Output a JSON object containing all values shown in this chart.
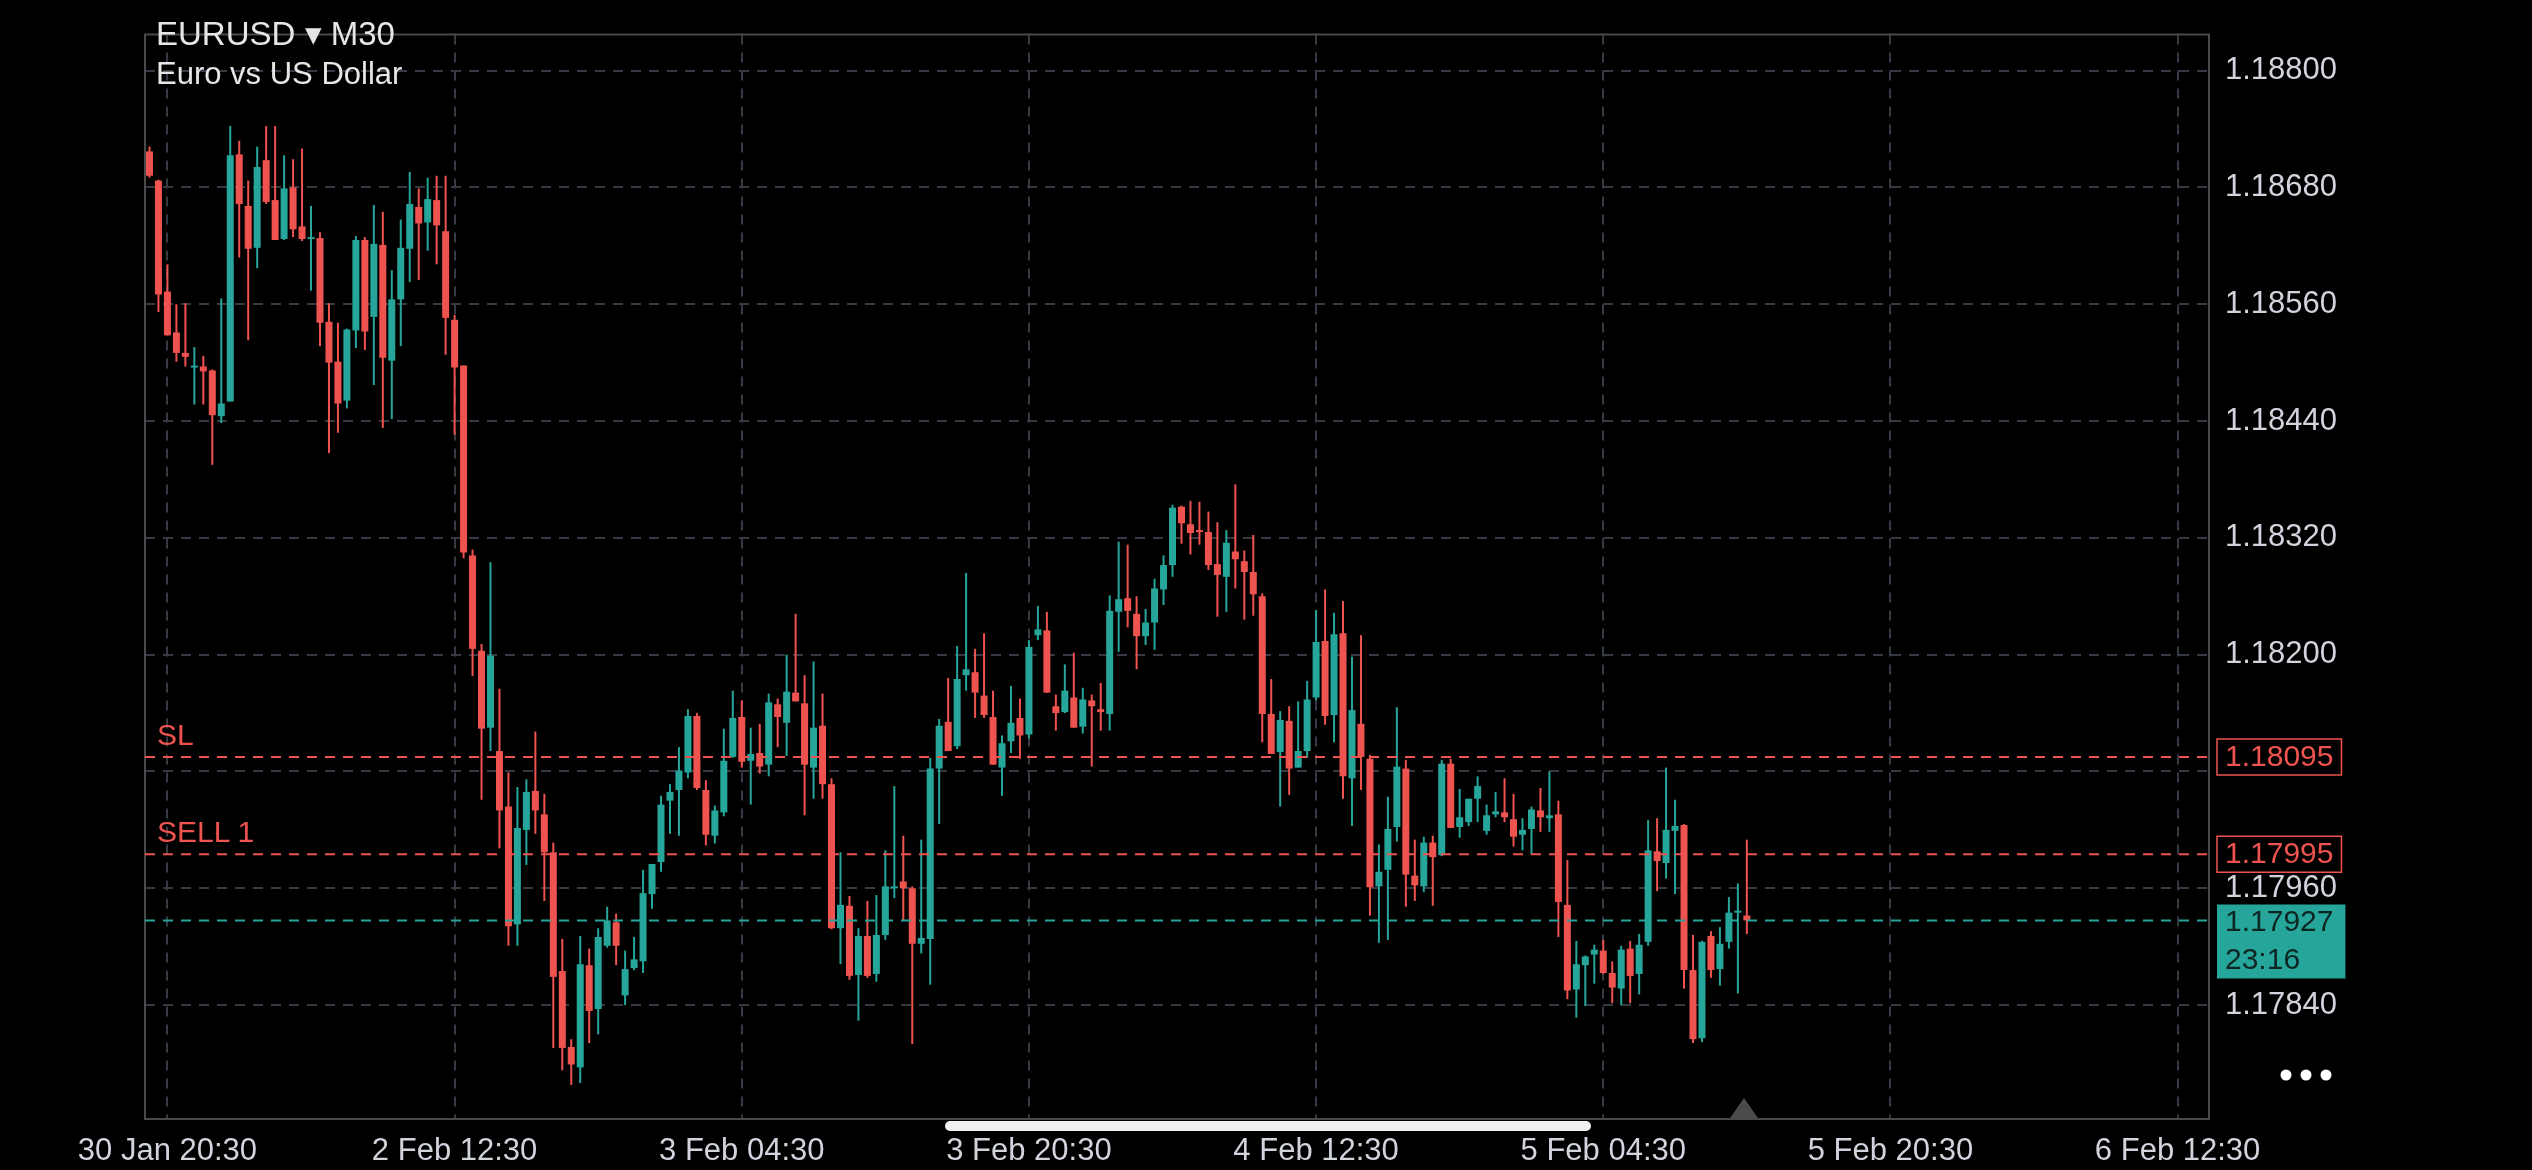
{
  "chart_data": {
    "type": "candlestick",
    "title": "EURUSD ▾ M30",
    "subtitle": "Euro vs US Dollar",
    "categories": [
      null,
      null,
      "30 Jan 20:30",
      null,
      null,
      null,
      null,
      null,
      null,
      null,
      null,
      null,
      null,
      null,
      null,
      null,
      null,
      null,
      null,
      null,
      null,
      null,
      null,
      null,
      null,
      null,
      null,
      null,
      null,
      null,
      null,
      null,
      null,
      null,
      "2 Feb 12:30",
      null,
      null,
      null,
      null,
      null,
      null,
      null,
      null,
      null,
      null,
      null,
      null,
      null,
      null,
      null,
      null,
      null,
      null,
      null,
      null,
      null,
      null,
      null,
      null,
      null,
      null,
      null,
      null,
      null,
      null,
      null,
      "3 Feb 04:30",
      null,
      null,
      null,
      null,
      null,
      null,
      null,
      null,
      null,
      null,
      null,
      null,
      null,
      null,
      null,
      null,
      null,
      null,
      null,
      null,
      null,
      null,
      null,
      null,
      null,
      null,
      null,
      null,
      null,
      null,
      null,
      "3 Feb 20:30",
      null,
      null,
      null,
      null,
      null,
      null,
      null,
      null,
      null,
      null,
      null,
      null,
      null,
      null,
      null,
      null,
      null,
      null,
      null,
      null,
      null,
      null,
      null,
      null,
      null,
      null,
      null,
      null,
      null,
      null,
      null,
      "4 Feb 12:30",
      null,
      null,
      null,
      null,
      null,
      null,
      null,
      null,
      null,
      null,
      null,
      null,
      null,
      null,
      null,
      null,
      null,
      null,
      null,
      null,
      null,
      null,
      null,
      null,
      null,
      null,
      null,
      null,
      null,
      null,
      null,
      "5 Feb 04:30",
      null,
      null,
      null,
      null,
      null,
      null,
      null,
      null,
      null,
      null,
      null,
      null,
      null,
      null,
      null,
      null,
      null,
      null,
      null,
      null,
      null,
      null,
      null,
      null,
      null,
      null,
      null,
      null,
      null,
      null,
      null,
      "5 Feb 20:30",
      null,
      null,
      null,
      null,
      null,
      null,
      null,
      null,
      null,
      null,
      null,
      null,
      null,
      null,
      null,
      null,
      null,
      null,
      null,
      null,
      null,
      null,
      null,
      null,
      null,
      null,
      null,
      null,
      null,
      null,
      null,
      "6 Feb 12:30",
      null,
      null,
      null
    ],
    "ohlc": [
      [
        1.18717,
        1.18722,
        1.1869,
        1.18692
      ],
      [
        1.18687,
        1.18688,
        1.18552,
        1.1857
      ],
      [
        1.18573,
        1.18601,
        1.18528,
        1.18528
      ],
      [
        1.18531,
        1.1856,
        1.18501,
        1.1851
      ],
      [
        1.1851,
        1.18561,
        1.18496,
        1.18506
      ],
      [
        1.18496,
        1.18516,
        1.18457,
        1.18497
      ],
      [
        1.18496,
        1.18507,
        1.18457,
        1.18491
      ],
      [
        1.18492,
        1.18493,
        1.18395,
        1.18446
      ],
      [
        1.18445,
        1.18566,
        1.18438,
        1.18458
      ],
      [
        1.1846,
        1.18743,
        1.1846,
        1.18713
      ],
      [
        1.18714,
        1.18728,
        1.18608,
        1.18663
      ],
      [
        1.18661,
        1.18687,
        1.18523,
        1.18617
      ],
      [
        1.18618,
        1.18722,
        1.18597,
        1.18701
      ],
      [
        1.18708,
        1.18743,
        1.18663,
        1.18665
      ],
      [
        1.18667,
        1.18743,
        1.18626,
        1.18626
      ],
      [
        1.18627,
        1.18713,
        1.18626,
        1.18679
      ],
      [
        1.1868,
        1.18709,
        1.18629,
        1.18637
      ],
      [
        1.1864,
        1.1872,
        1.18625,
        1.18627
      ],
      [
        1.18627,
        1.18661,
        1.18574,
        1.18629
      ],
      [
        1.18628,
        1.18634,
        1.18517,
        1.18541
      ],
      [
        1.18542,
        1.18561,
        1.18407,
        1.185
      ],
      [
        1.18501,
        1.18541,
        1.18428,
        1.18458
      ],
      [
        1.18461,
        1.18535,
        1.18453,
        1.18534
      ],
      [
        1.18533,
        1.1863,
        1.18515,
        1.18626
      ],
      [
        1.18626,
        1.18629,
        1.18513,
        1.18532
      ],
      [
        1.18547,
        1.18662,
        1.18477,
        1.18622
      ],
      [
        1.18621,
        1.18655,
        1.18433,
        1.18505
      ],
      [
        1.18502,
        1.18595,
        1.18442,
        1.18565
      ],
      [
        1.18565,
        1.18647,
        1.18517,
        1.18618
      ],
      [
        1.18617,
        1.18696,
        1.18583,
        1.18663
      ],
      [
        1.1866,
        1.18679,
        1.18585,
        1.18643
      ],
      [
        1.18644,
        1.1869,
        1.18615,
        1.18668
      ],
      [
        1.18667,
        1.18692,
        1.18601,
        1.18641
      ],
      [
        1.18635,
        1.18692,
        1.18508,
        1.18546
      ],
      [
        1.18544,
        1.18549,
        1.18426,
        1.18495
      ],
      [
        1.18497,
        1.18497,
        1.18299,
        1.18305
      ],
      [
        1.18302,
        1.18308,
        1.18178,
        1.18206
      ],
      [
        1.18204,
        1.18211,
        1.18051,
        1.18124
      ],
      [
        1.18125,
        1.18295,
        1.18101,
        1.18199
      ],
      [
        1.18101,
        1.18165,
        1.18001,
        1.1804
      ],
      [
        1.18044,
        1.18079,
        1.17901,
        1.17921
      ],
      [
        1.17923,
        1.18064,
        1.17901,
        1.18022
      ],
      [
        1.1802,
        1.18072,
        1.17984,
        1.18059
      ],
      [
        1.1806,
        1.18121,
        1.18016,
        1.1804
      ],
      [
        1.18036,
        1.18057,
        1.17947,
        1.17997
      ],
      [
        1.17997,
        1.18007,
        1.17796,
        1.17869
      ],
      [
        1.17875,
        1.17908,
        1.17773,
        1.17796
      ],
      [
        1.17797,
        1.17805,
        1.17758,
        1.17779
      ],
      [
        1.17776,
        1.17911,
        1.1776,
        1.17882
      ],
      [
        1.17881,
        1.17898,
        1.17801,
        1.17834
      ],
      [
        1.17836,
        1.17919,
        1.1781,
        1.1791
      ],
      [
        1.17901,
        1.17941,
        1.17899,
        1.17927
      ],
      [
        1.17925,
        1.17934,
        1.17881,
        1.17901
      ],
      [
        1.1785,
        1.17896,
        1.1784,
        1.17877
      ],
      [
        1.17878,
        1.1791,
        1.17876,
        1.17887
      ],
      [
        1.17885,
        1.17979,
        1.17873,
        1.17955
      ],
      [
        1.17954,
        1.17985,
        1.17939,
        1.17985
      ],
      [
        1.17987,
        1.18055,
        1.17977,
        1.18046
      ],
      [
        1.1805,
        1.18067,
        1.18016,
        1.18059
      ],
      [
        1.18061,
        1.18105,
        1.18014,
        1.18081
      ],
      [
        1.18079,
        1.18144,
        1.18073,
        1.18137
      ],
      [
        1.18137,
        1.1814,
        1.18061,
        1.18063
      ],
      [
        1.18061,
        1.18071,
        1.18004,
        1.18015
      ],
      [
        1.18014,
        1.18045,
        1.18006,
        1.1804
      ],
      [
        1.18038,
        1.18124,
        1.18034,
        1.18091
      ],
      [
        1.18095,
        1.18163,
        1.18094,
        1.18135
      ],
      [
        1.18136,
        1.18153,
        1.18084,
        1.1809
      ],
      [
        1.18091,
        1.18125,
        1.18046,
        1.18098
      ],
      [
        1.18099,
        1.18129,
        1.18078,
        1.18085
      ],
      [
        1.18087,
        1.1816,
        1.18075,
        1.18151
      ],
      [
        1.18149,
        1.18155,
        1.18105,
        1.18136
      ],
      [
        1.1813,
        1.182,
        1.18096,
        1.18162
      ],
      [
        1.18161,
        1.18242,
        1.18152,
        1.18152
      ],
      [
        1.1815,
        1.18179,
        1.18035,
        1.18087
      ],
      [
        1.18084,
        1.18193,
        1.18052,
        1.18125
      ],
      [
        1.18127,
        1.1816,
        1.18052,
        1.18067
      ],
      [
        1.18067,
        1.18073,
        1.17918,
        1.17919
      ],
      [
        1.17919,
        1.17997,
        1.17882,
        1.17943
      ],
      [
        1.17942,
        1.17952,
        1.17866,
        1.1787
      ],
      [
        1.17871,
        1.17919,
        1.17824,
        1.17911
      ],
      [
        1.17911,
        1.17947,
        1.17868,
        1.1787
      ],
      [
        1.17872,
        1.17953,
        1.17864,
        1.17912
      ],
      [
        1.17912,
        1.17999,
        1.17907,
        1.17962
      ],
      [
        1.17961,
        1.18065,
        1.1795,
        1.17962
      ],
      [
        1.17967,
        1.18014,
        1.17927,
        1.1796
      ],
      [
        1.1796,
        1.17962,
        1.178,
        1.17903
      ],
      [
        1.17903,
        1.1801,
        1.17893,
        1.17909
      ],
      [
        1.17908,
        1.18094,
        1.17861,
        1.18083
      ],
      [
        1.18083,
        1.18134,
        1.18026,
        1.18127
      ],
      [
        1.18131,
        1.18176,
        1.18101,
        1.18101
      ],
      [
        1.18106,
        1.18209,
        1.18103,
        1.18175
      ],
      [
        1.18179,
        1.18284,
        1.18163,
        1.18185
      ],
      [
        1.18182,
        1.18206,
        1.18135,
        1.18161
      ],
      [
        1.18158,
        1.18222,
        1.18135,
        1.18138
      ],
      [
        1.18136,
        1.18163,
        1.18087,
        1.18087
      ],
      [
        1.18084,
        1.18117,
        1.18055,
        1.18109
      ],
      [
        1.18111,
        1.18168,
        1.18099,
        1.1813
      ],
      [
        1.18135,
        1.18155,
        1.18093,
        1.18117
      ],
      [
        1.18118,
        1.18215,
        1.18114,
        1.18208
      ],
      [
        1.1822,
        1.1825,
        1.18215,
        1.18226
      ],
      [
        1.18225,
        1.18244,
        1.18161,
        1.18161
      ],
      [
        1.18147,
        1.18159,
        1.18122,
        1.1814
      ],
      [
        1.18141,
        1.1819,
        1.1814,
        1.18163
      ],
      [
        1.18156,
        1.18202,
        1.18125,
        1.18125
      ],
      [
        1.18126,
        1.18166,
        1.18119,
        1.18154
      ],
      [
        1.18153,
        1.18159,
        1.18085,
        1.18147
      ],
      [
        1.18144,
        1.18171,
        1.18122,
        1.18141
      ],
      [
        1.18139,
        1.18261,
        1.18122,
        1.18245
      ],
      [
        1.18244,
        1.18316,
        1.18203,
        1.18257
      ],
      [
        1.18258,
        1.18313,
        1.18228,
        1.18245
      ],
      [
        1.18242,
        1.1826,
        1.18185,
        1.18219
      ],
      [
        1.18219,
        1.18247,
        1.1821,
        1.18233
      ],
      [
        1.18233,
        1.18278,
        1.18205,
        1.18268
      ],
      [
        1.18267,
        1.18302,
        1.18251,
        1.18292
      ],
      [
        1.18292,
        1.18354,
        1.1828,
        1.18351
      ],
      [
        1.18352,
        1.18353,
        1.18314,
        1.18335
      ],
      [
        1.18334,
        1.18358,
        1.18303,
        1.18325
      ],
      [
        1.18328,
        1.18357,
        1.18313,
        1.18326
      ],
      [
        1.18326,
        1.18347,
        1.18287,
        1.18292
      ],
      [
        1.18293,
        1.18336,
        1.18239,
        1.18282
      ],
      [
        1.1828,
        1.18328,
        1.18244,
        1.18315
      ],
      [
        1.18306,
        1.18375,
        1.18268,
        1.18298
      ],
      [
        1.18296,
        1.18307,
        1.18236,
        1.18285
      ],
      [
        1.18285,
        1.18323,
        1.1824,
        1.18262
      ],
      [
        1.1826,
        1.18263,
        1.1811,
        1.18139
      ],
      [
        1.18139,
        1.18175,
        1.18098,
        1.18098
      ],
      [
        1.181,
        1.18142,
        1.18044,
        1.18133
      ],
      [
        1.18132,
        1.18147,
        1.18056,
        1.18083
      ],
      [
        1.18084,
        1.18152,
        1.18084,
        1.18101
      ],
      [
        1.18101,
        1.18173,
        1.18094,
        1.18154
      ],
      [
        1.18156,
        1.18246,
        1.18153,
        1.18213
      ],
      [
        1.18214,
        1.18267,
        1.18128,
        1.18137
      ],
      [
        1.18138,
        1.18243,
        1.1811,
        1.18221
      ],
      [
        1.18222,
        1.18255,
        1.18052,
        1.18075
      ],
      [
        1.18073,
        1.18198,
        1.18024,
        1.18143
      ],
      [
        1.18129,
        1.1822,
        1.18061,
        1.18095
      ],
      [
        1.18093,
        1.18097,
        1.17932,
        1.17961
      ],
      [
        1.17962,
        1.18005,
        1.17904,
        1.17977
      ],
      [
        1.17979,
        1.18054,
        1.17907,
        1.18021
      ],
      [
        1.18023,
        1.18146,
        1.18008,
        1.18085
      ],
      [
        1.18083,
        1.18092,
        1.17941,
        1.17974
      ],
      [
        1.17973,
        1.1801,
        1.17947,
        1.17963
      ],
      [
        1.17962,
        1.18013,
        1.17956,
        1.18007
      ],
      [
        1.18007,
        1.18014,
        1.17942,
        1.17992
      ],
      [
        1.17994,
        1.18092,
        1.17993,
        1.18088
      ],
      [
        1.18088,
        1.18093,
        1.18022,
        1.18022
      ],
      [
        1.18023,
        1.18062,
        1.18012,
        1.18033
      ],
      [
        1.18028,
        1.18052,
        1.18024,
        1.18052
      ],
      [
        1.18052,
        1.18075,
        1.18028,
        1.18065
      ],
      [
        1.18019,
        1.18046,
        1.18015,
        1.18035
      ],
      [
        1.18036,
        1.18059,
        1.18033,
        1.18039
      ],
      [
        1.18038,
        1.18073,
        1.18028,
        1.18033
      ],
      [
        1.18031,
        1.18057,
        1.18003,
        1.18013
      ],
      [
        1.18015,
        1.18032,
        1.17999,
        1.1802
      ],
      [
        1.18021,
        1.18044,
        1.17995,
        1.18041
      ],
      [
        1.1804,
        1.18063,
        1.18018,
        1.18033
      ],
      [
        1.18032,
        1.1808,
        1.18018,
        1.18035
      ],
      [
        1.18036,
        1.1805,
        1.1791,
        1.17946
      ],
      [
        1.17943,
        1.17989,
        1.17846,
        1.17855
      ],
      [
        1.17856,
        1.17906,
        1.17827,
        1.17882
      ],
      [
        1.17881,
        1.17891,
        1.17839,
        1.1789
      ],
      [
        1.17892,
        1.17902,
        1.17862,
        1.17897
      ],
      [
        1.17896,
        1.17907,
        1.17872,
        1.17873
      ],
      [
        1.17873,
        1.17885,
        1.17842,
        1.17858
      ],
      [
        1.17857,
        1.17901,
        1.1784,
        1.17897
      ],
      [
        1.17898,
        1.17906,
        1.17842,
        1.1787
      ],
      [
        1.17872,
        1.17913,
        1.17851,
        1.17902
      ],
      [
        1.17905,
        1.1803,
        1.17901,
        1.17999
      ],
      [
        1.17998,
        1.18032,
        1.17957,
        1.17988
      ],
      [
        1.17986,
        1.18084,
        1.1797,
        1.1802
      ],
      [
        1.18019,
        1.18051,
        1.17954,
        1.18024
      ],
      [
        1.18025,
        1.18026,
        1.17857,
        1.17876
      ],
      [
        1.17876,
        1.17912,
        1.17801,
        1.17805
      ],
      [
        1.17806,
        1.17906,
        1.17802,
        1.17905
      ],
      [
        1.17911,
        1.17916,
        1.17868,
        1.17876
      ],
      [
        1.17877,
        1.1792,
        1.1786,
        1.17903
      ],
      [
        1.17905,
        1.17951,
        1.17898,
        1.17935
      ],
      [
        1.17936,
        1.17965,
        1.17852,
        1.17937
      ],
      [
        1.17932,
        1.1801,
        1.17913,
        1.17927
      ],
      null,
      null,
      null,
      null,
      null,
      null,
      null,
      null,
      null,
      null,
      null,
      null,
      null,
      null,
      null,
      null,
      null,
      null,
      null,
      null,
      null,
      null,
      null,
      null,
      null,
      null,
      null,
      null,
      null,
      null,
      null,
      null,
      null,
      null,
      null,
      null,
      null,
      null,
      null,
      null,
      null,
      null,
      null,
      null,
      null,
      null,
      null,
      null,
      null,
      null,
      null
    ],
    "colors": [
      "#ef5350",
      "#ef5350",
      "#ef5350",
      "#ef5350",
      "#ef5350",
      "#26a69a",
      "#ef5350",
      "#ef5350",
      "#26a69a",
      "#26a69a",
      "#ef5350",
      "#ef5350",
      "#26a69a",
      "#ef5350",
      "#ef5350",
      "#26a69a",
      "#ef5350",
      "#ef5350",
      "#26a69a",
      "#ef5350",
      "#ef5350",
      "#ef5350",
      "#26a69a",
      "#26a69a",
      "#ef5350",
      "#26a69a",
      "#ef5350",
      "#26a69a",
      "#26a69a",
      "#26a69a",
      "#ef5350",
      "#26a69a",
      "#ef5350",
      "#ef5350",
      "#ef5350",
      "#ef5350",
      "#ef5350",
      "#ef5350",
      "#26a69a",
      "#ef5350",
      "#ef5350",
      "#26a69a",
      "#26a69a",
      "#ef5350",
      "#ef5350",
      "#ef5350",
      "#ef5350",
      "#ef5350",
      "#26a69a",
      "#ef5350",
      "#26a69a",
      "#26a69a",
      "#ef5350",
      "#26a69a",
      "#26a69a",
      "#26a69a",
      "#26a69a",
      "#26a69a",
      "#26a69a",
      "#26a69a",
      "#26a69a",
      "#ef5350",
      "#ef5350",
      "#26a69a",
      "#26a69a",
      "#26a69a",
      "#ef5350",
      "#26a69a",
      "#ef5350",
      "#26a69a",
      "#ef5350",
      "#26a69a",
      "#ef5350",
      "#ef5350",
      "#26a69a",
      "#ef5350",
      "#ef5350",
      "#26a69a",
      "#ef5350",
      "#26a69a",
      "#ef5350",
      "#26a69a",
      "#26a69a",
      "#26a69a",
      "#ef5350",
      "#ef5350",
      "#26a69a",
      "#26a69a",
      "#26a69a",
      "#ef5350",
      "#26a69a",
      "#26a69a",
      "#ef5350",
      "#ef5350",
      "#ef5350",
      "#26a69a",
      "#26a69a",
      "#ef5350",
      "#26a69a",
      "#26a69a",
      "#ef5350",
      "#ef5350",
      "#26a69a",
      "#ef5350",
      "#26a69a",
      "#ef5350",
      "#ef5350",
      "#26a69a",
      "#26a69a",
      "#ef5350",
      "#ef5350",
      "#26a69a",
      "#26a69a",
      "#26a69a",
      "#26a69a",
      "#ef5350",
      "#ef5350",
      "#ef5350",
      "#ef5350",
      "#ef5350",
      "#26a69a",
      "#ef5350",
      "#ef5350",
      "#ef5350",
      "#ef5350",
      "#ef5350",
      "#26a69a",
      "#ef5350",
      "#26a69a",
      "#26a69a",
      "#26a69a",
      "#ef5350",
      "#26a69a",
      "#ef5350",
      "#26a69a",
      "#ef5350",
      "#ef5350",
      "#26a69a",
      "#26a69a",
      "#26a69a",
      "#ef5350",
      "#ef5350",
      "#26a69a",
      "#ef5350",
      "#26a69a",
      "#ef5350",
      "#26a69a",
      "#26a69a",
      "#26a69a",
      "#26a69a",
      "#26a69a",
      "#ef5350",
      "#ef5350",
      "#26a69a",
      "#26a69a",
      "#ef5350",
      "#26a69a",
      "#ef5350",
      "#ef5350",
      "#26a69a",
      "#26a69a",
      "#26a69a",
      "#ef5350",
      "#ef5350",
      "#26a69a",
      "#ef5350",
      "#26a69a",
      "#26a69a",
      "#ef5350",
      "#26a69a",
      "#26a69a",
      "#ef5350",
      "#ef5350",
      "#26a69a",
      "#ef5350",
      "#26a69a",
      "#26a69a",
      "#26a69a",
      "#ef5350",
      null,
      null,
      null,
      null,
      null,
      null,
      null,
      null,
      null,
      null,
      null,
      null,
      null,
      null,
      null,
      null,
      null,
      null,
      null,
      null,
      null,
      null,
      null,
      null,
      null,
      null,
      null,
      null,
      null,
      null,
      null,
      null,
      null,
      null,
      null,
      null,
      null,
      null,
      null,
      null,
      null,
      null,
      null,
      null,
      null,
      null,
      null,
      null,
      null,
      null,
      null
    ],
    "ylim": [
      1.17723,
      1.18837
    ],
    "yticks": [
      {
        "value": 1.1784,
        "label": "1.17840"
      },
      {
        "value": 1.1796,
        "label": "1.17960"
      },
      {
        "value": 1.1808,
        "label": null
      },
      {
        "value": 1.182,
        "label": "1.18200"
      },
      {
        "value": 1.1832,
        "label": "1.18320"
      },
      {
        "value": 1.1844,
        "label": "1.18440"
      },
      {
        "value": 1.1856,
        "label": "1.18560"
      },
      {
        "value": 1.1868,
        "label": "1.18680"
      },
      {
        "value": 1.188,
        "label": "1.18800"
      }
    ],
    "ref_lines": [
      {
        "axis": "y",
        "value": 1.18095,
        "label": "SL",
        "color": "#ef5350",
        "line_style": "dashed"
      },
      {
        "axis": "y",
        "value": 1.17995,
        "label": "SELL 1",
        "color": "#ef5350",
        "line_style": "dashed"
      },
      {
        "axis": "y",
        "value": 1.17927,
        "color": "#26a69a",
        "line_style": "dashed"
      }
    ],
    "annotations": [
      "1.18095",
      "1.17995",
      "1.17927",
      "23:16"
    ],
    "grid": true,
    "legend": false
  }
}
